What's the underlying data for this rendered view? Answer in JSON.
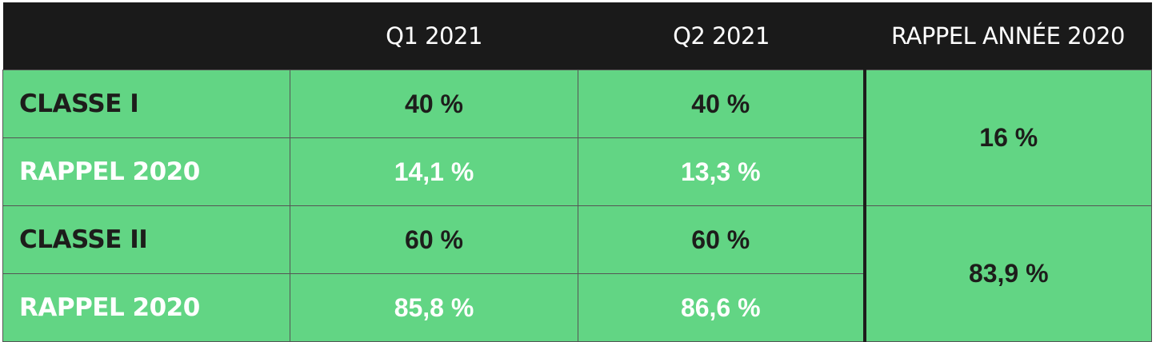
{
  "table": {
    "header": [
      "Q1 2021",
      "Q2 2021",
      "RAPPEL ANNÉE 2020"
    ],
    "groups": [
      {
        "rows": [
          {
            "label": "CLASSE I",
            "values": [
              "40 %",
              "40 %"
            ]
          },
          {
            "label": "RAPPEL 2020",
            "values": [
              "14,1 %",
              "13,3 %"
            ]
          }
        ],
        "recall": "16 %"
      },
      {
        "rows": [
          {
            "label": "CLASSE II",
            "values": [
              "60 %",
              "60 %"
            ]
          },
          {
            "label": "RAPPEL 2020",
            "values": [
              "85,8 %",
              "86,6 %"
            ]
          }
        ],
        "recall": "83,9 %"
      }
    ]
  }
}
